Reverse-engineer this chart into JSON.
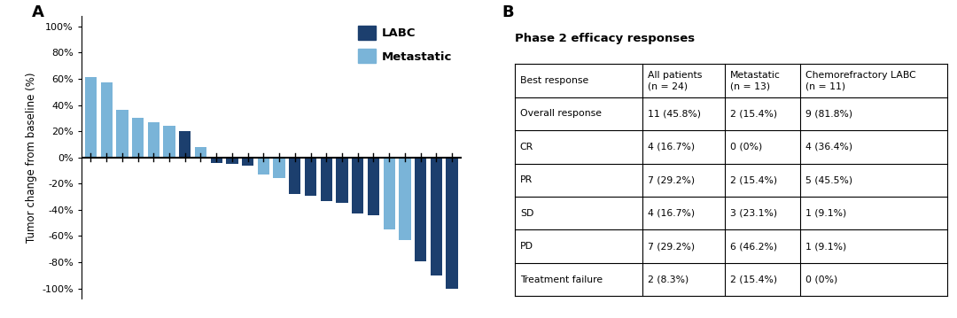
{
  "labc_color": "#1c3f6e",
  "metastatic_color": "#7ab4d8",
  "bar_data": [
    [
      61,
      "M"
    ],
    [
      57,
      "M"
    ],
    [
      36,
      "M"
    ],
    [
      30,
      "M"
    ],
    [
      27,
      "M"
    ],
    [
      24,
      "M"
    ],
    [
      20,
      "L"
    ],
    [
      8,
      "M"
    ],
    [
      -5,
      "L"
    ],
    [
      -13,
      "M"
    ],
    [
      -16,
      "M"
    ],
    [
      -29,
      "L"
    ],
    [
      -33,
      "L"
    ],
    [
      -43,
      "L"
    ],
    [
      -44,
      "L"
    ],
    [
      -55,
      "M"
    ],
    [
      -63,
      "M"
    ],
    [
      -4,
      "L"
    ],
    [
      -6,
      "L"
    ],
    [
      -28,
      "L"
    ],
    [
      -35,
      "L"
    ],
    [
      -79,
      "L"
    ],
    [
      -90,
      "L"
    ],
    [
      -100,
      "L"
    ]
  ],
  "ylabel": "Tumor change from baseline (%)",
  "ytick_vals": [
    -100,
    -80,
    -60,
    -40,
    -20,
    0,
    20,
    40,
    60,
    80,
    100
  ],
  "ytick_labels": [
    "-100%",
    "-80%",
    "-60%",
    "-40%",
    "-20%",
    "0%",
    "20%",
    "40%",
    "60%",
    "80%",
    "100%"
  ],
  "ylim": [
    -108,
    108
  ],
  "panel_a_label": "A",
  "panel_b_label": "B",
  "table_title": "Phase 2 efficacy responses",
  "table_headers": [
    "Best response",
    "All patients\n(n = 24)",
    "Metastatic\n(n = 13)",
    "Chemorefractory LABC\n(n = 11)"
  ],
  "table_rows": [
    [
      "Overall response",
      "11 (45.8%)",
      "2 (15.4%)",
      "9 (81.8%)"
    ],
    [
      "CR",
      "4 (16.7%)",
      "0 (0%)",
      "4 (36.4%)"
    ],
    [
      "PR",
      "7 (29.2%)",
      "2 (15.4%)",
      "5 (45.5%)"
    ],
    [
      "SD",
      "4 (16.7%)",
      "3 (23.1%)",
      "1 (9.1%)"
    ],
    [
      "PD",
      "7 (29.2%)",
      "6 (46.2%)",
      "1 (9.1%)"
    ],
    [
      "Treatment failure",
      "2 (8.3%)",
      "2 (15.4%)",
      "0 (0%)"
    ]
  ]
}
